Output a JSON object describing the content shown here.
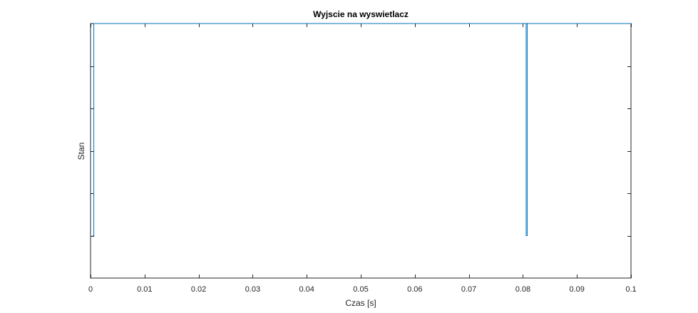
{
  "chart_data": {
    "type": "line",
    "title": "Wyjscie na wyswietlacz",
    "xlabel": "Czas [s]",
    "ylabel": "Stan",
    "xlim": [
      0,
      0.1
    ],
    "ylim": [
      0,
      6
    ],
    "x_ticks": [
      0,
      0.01,
      0.02,
      0.03,
      0.04,
      0.05,
      0.06,
      0.07,
      0.08,
      0.09,
      0.1
    ],
    "x_tick_labels": [
      "0",
      "0.01",
      "0.02",
      "0.03",
      "0.04",
      "0.05",
      "0.06",
      "0.07",
      "0.08",
      "0.09",
      "0.1"
    ],
    "y_ticks": [
      1,
      2,
      3,
      4,
      5
    ],
    "y_tick_labels": [
      "",
      "",
      "",
      "",
      ""
    ],
    "grid": false,
    "line_color": "#0072bd",
    "series": [
      {
        "step": "post",
        "x": [
          0.0004,
          0.0006,
          0.0806,
          0.0808,
          0.1
        ],
        "y": [
          1,
          6,
          1,
          6,
          6
        ]
      }
    ]
  }
}
